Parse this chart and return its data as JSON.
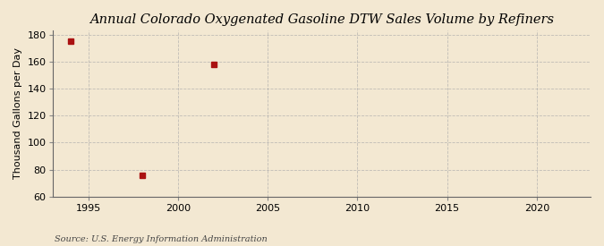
{
  "title": "Annual Colorado Oxygenated Gasoline DTW Sales Volume by Refiners",
  "ylabel": "Thousand Gallons per Day",
  "source": "Source: U.S. Energy Information Administration",
  "background_color": "#f3e8d2",
  "data_x": [
    1994,
    1998,
    2002
  ],
  "data_y": [
    175.0,
    76.0,
    158.0
  ],
  "marker_color": "#aa1111",
  "marker_size": 4,
  "xlim": [
    1993,
    2023
  ],
  "ylim": [
    60,
    183
  ],
  "xticks": [
    1995,
    2000,
    2005,
    2010,
    2015,
    2020
  ],
  "yticks": [
    60,
    80,
    100,
    120,
    140,
    160,
    180
  ],
  "title_fontsize": 10.5,
  "label_fontsize": 8,
  "tick_fontsize": 8,
  "source_fontsize": 7
}
